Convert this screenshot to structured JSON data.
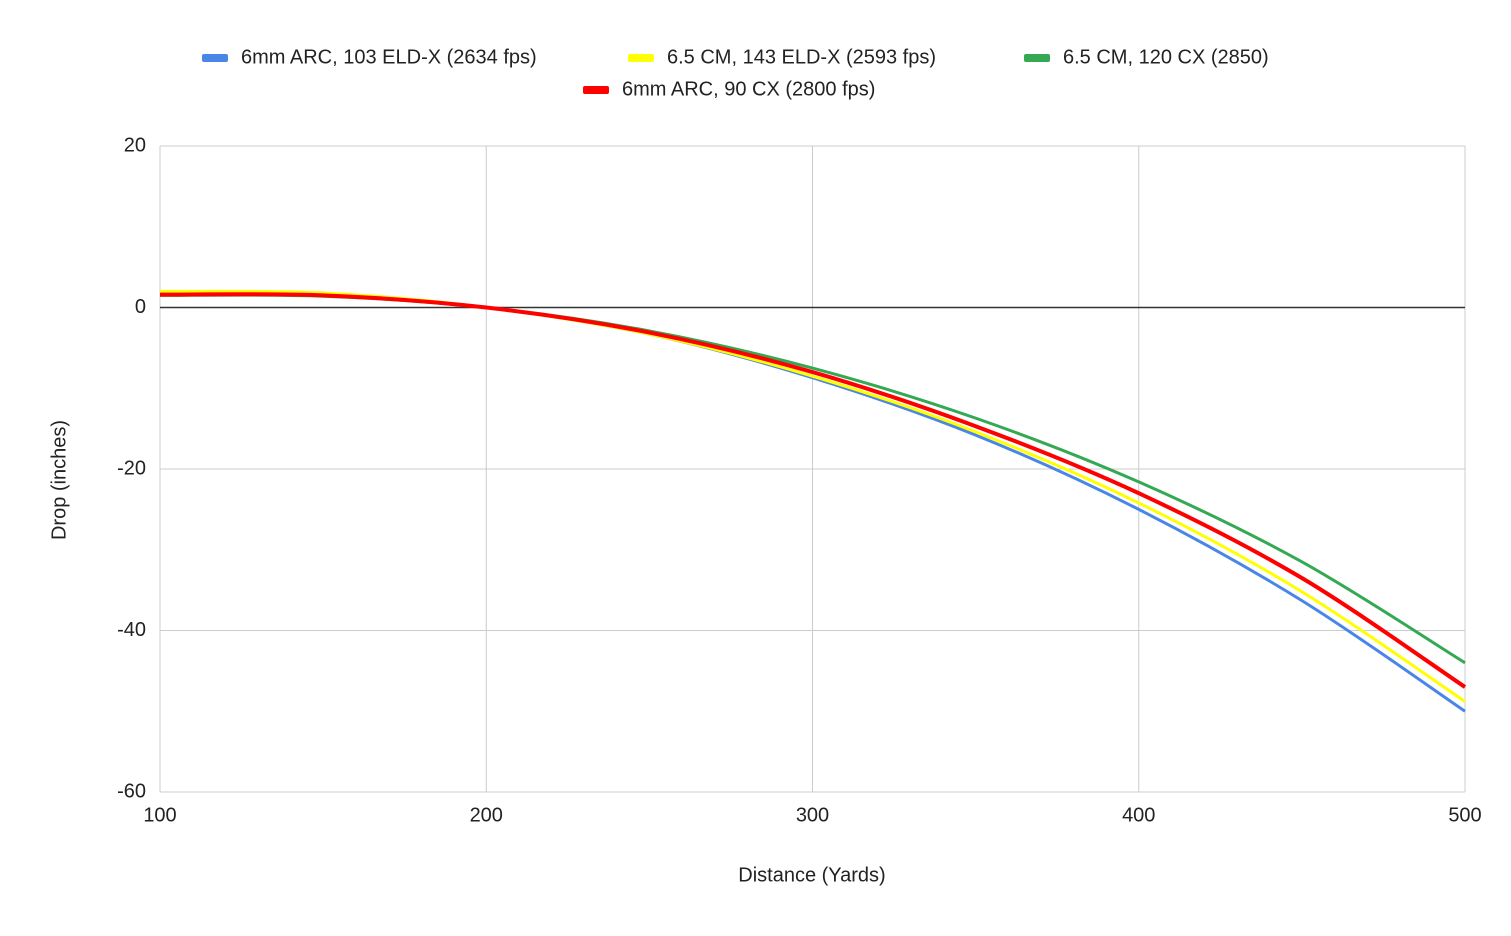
{
  "chart_data": {
    "type": "line",
    "x_label": "Distance (Yards)",
    "y_label": "Drop (inches)",
    "x": [
      100,
      150,
      200,
      250,
      300,
      350,
      400,
      450,
      500
    ],
    "series": [
      {
        "name": "6mm ARC, 103 ELD-X (2634 fps)",
        "color": "#4a86e8",
        "values": [
          1.8,
          1.6,
          0,
          -3.3,
          -8.7,
          -15.8,
          -25,
          -36.3,
          -50
        ]
      },
      {
        "name": "6.5 CM, 143 ELD-X (2593 fps)",
        "color": "#ffff00",
        "values": [
          2.0,
          1.8,
          0,
          -3.3,
          -8.5,
          -15.4,
          -24.2,
          -35.2,
          -48.8
        ]
      },
      {
        "name": "6.5 CM, 120 CX (2850)",
        "color": "#34a853",
        "values": [
          1.5,
          1.4,
          0,
          -2.9,
          -7.5,
          -13.7,
          -21.6,
          -31.5,
          -44
        ]
      },
      {
        "name": "6mm ARC, 90 CX (2800 fps)",
        "color": "#ff0000",
        "values": [
          1.6,
          1.5,
          0,
          -3.1,
          -8,
          -14.7,
          -23,
          -33.5,
          -47
        ]
      }
    ],
    "xlim": [
      100,
      500
    ],
    "xticks": [
      100,
      200,
      300,
      400,
      500
    ],
    "ylim": [
      -60,
      20
    ],
    "yticks": [
      -60,
      -40,
      -20,
      0,
      20
    ],
    "grid": true,
    "legend": "top"
  }
}
